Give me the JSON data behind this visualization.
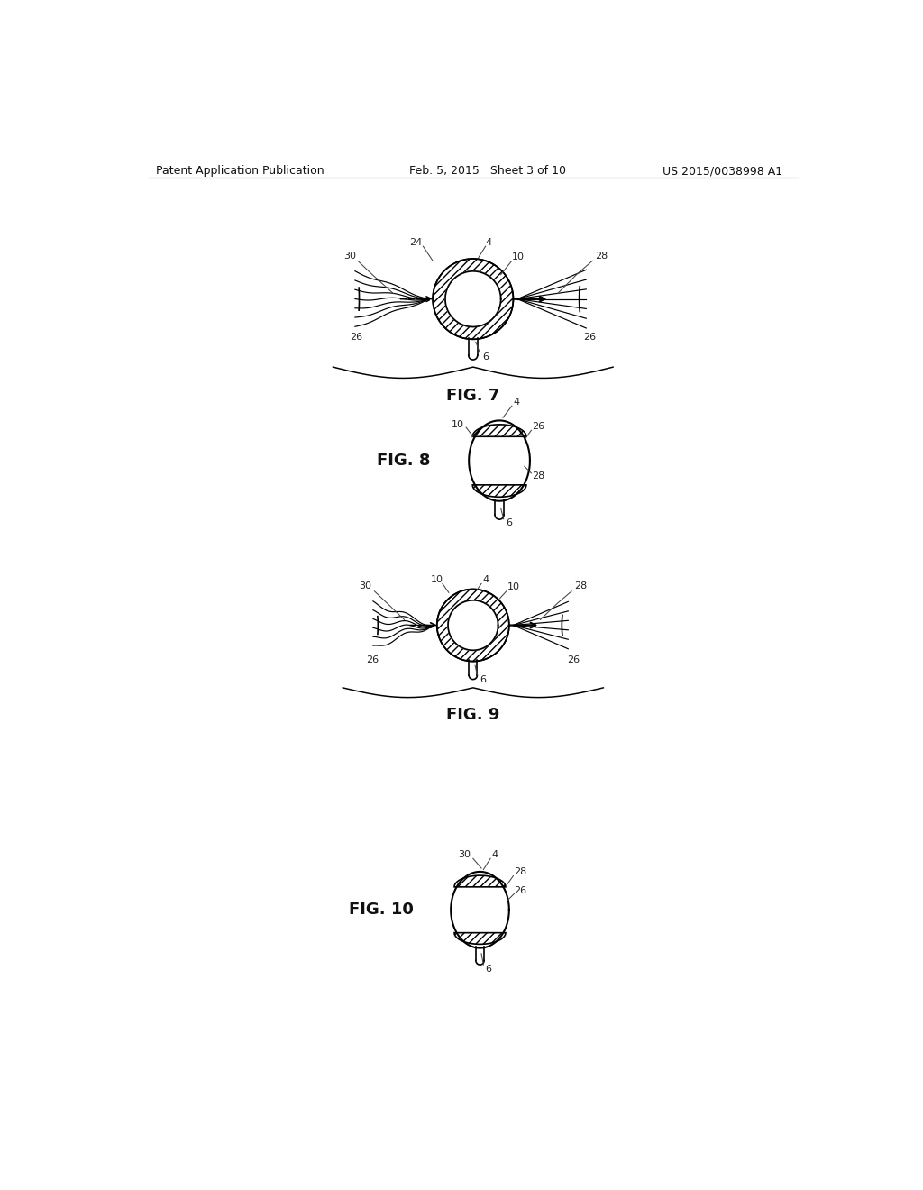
{
  "bg_color": "#ffffff",
  "header_left": "Patent Application Publication",
  "header_mid": "Feb. 5, 2015   Sheet 3 of 10",
  "header_right": "US 2015/0038998 A1",
  "line_color": "#000000",
  "label_color": "#222222"
}
